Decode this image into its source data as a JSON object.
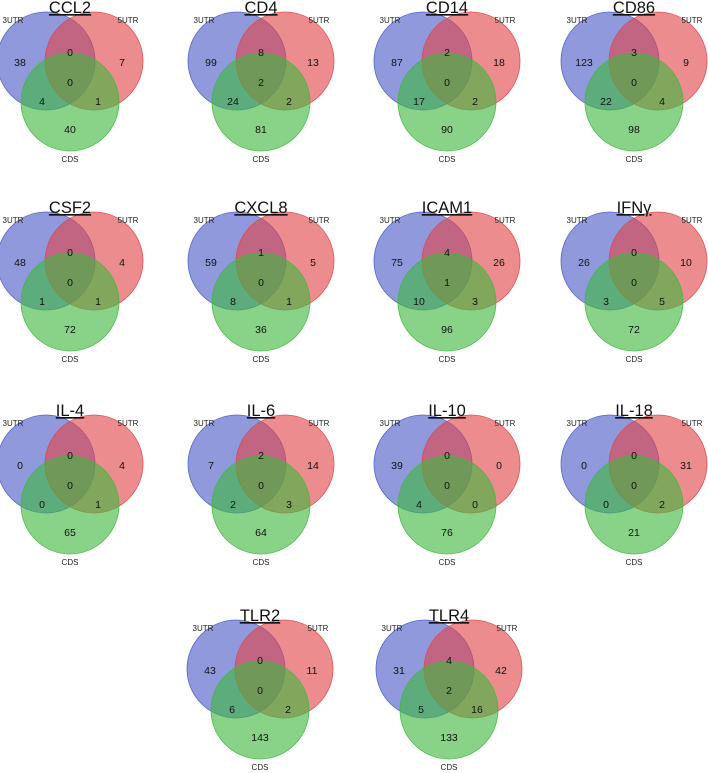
{
  "set_labels": {
    "a": "3UTR",
    "b": "5UTR",
    "c": "CDS"
  },
  "colors": {
    "a": "#4a5bc6",
    "b": "#e0464a",
    "c": "#3fb83f"
  },
  "diagrams": [
    {
      "title": "CCL2",
      "counts": {
        "a": "38",
        "b": "7",
        "c": "40",
        "ab": "0",
        "ac": "4",
        "bc": "1",
        "abc": "0"
      }
    },
    {
      "title": "CD4",
      "counts": {
        "a": "99",
        "b": "13",
        "c": "81",
        "ab": "8",
        "ac": "24",
        "bc": "2",
        "abc": "2"
      }
    },
    {
      "title": "CD14",
      "counts": {
        "a": "87",
        "b": "18",
        "c": "90",
        "ab": "2",
        "ac": "17",
        "bc": "2",
        "abc": "0"
      }
    },
    {
      "title": "CD86",
      "counts": {
        "a": "123",
        "b": "9",
        "c": "98",
        "ab": "3",
        "ac": "22",
        "bc": "4",
        "abc": "0"
      }
    },
    {
      "title": "CSF2",
      "counts": {
        "a": "48",
        "b": "4",
        "c": "72",
        "ab": "0",
        "ac": "1",
        "bc": "1",
        "abc": "0"
      }
    },
    {
      "title": "CXCL8",
      "counts": {
        "a": "59",
        "b": "5",
        "c": "36",
        "ab": "1",
        "ac": "8",
        "bc": "1",
        "abc": "0"
      }
    },
    {
      "title": "ICAM1",
      "counts": {
        "a": "75",
        "b": "26",
        "c": "96",
        "ab": "4",
        "ac": "10",
        "bc": "3",
        "abc": "1"
      }
    },
    {
      "title": "IFNγ",
      "counts": {
        "a": "26",
        "b": "10",
        "c": "72",
        "ab": "0",
        "ac": "3",
        "bc": "5",
        "abc": "0"
      }
    },
    {
      "title": "IL-4",
      "counts": {
        "a": "0",
        "b": "4",
        "c": "65",
        "ab": "0",
        "ac": "0",
        "bc": "1",
        "abc": "0"
      }
    },
    {
      "title": "IL-6",
      "counts": {
        "a": "7",
        "b": "14",
        "c": "64",
        "ab": "2",
        "ac": "2",
        "bc": "3",
        "abc": "0"
      }
    },
    {
      "title": "IL-10",
      "counts": {
        "a": "39",
        "b": "0",
        "c": "76",
        "ab": "0",
        "ac": "4",
        "bc": "0",
        "abc": "0"
      }
    },
    {
      "title": "IL-18",
      "counts": {
        "a": "0",
        "b": "31",
        "c": "21",
        "ab": "0",
        "ac": "0",
        "bc": "2",
        "abc": "0"
      }
    },
    {
      "title": "TLR2",
      "counts": {
        "a": "43",
        "b": "11",
        "c": "143",
        "ab": "0",
        "ac": "6",
        "bc": "2",
        "abc": "0"
      }
    },
    {
      "title": "TLR4",
      "counts": {
        "a": "31",
        "b": "42",
        "c": "133",
        "ab": "4",
        "ac": "5",
        "bc": "16",
        "abc": "2"
      }
    }
  ]
}
